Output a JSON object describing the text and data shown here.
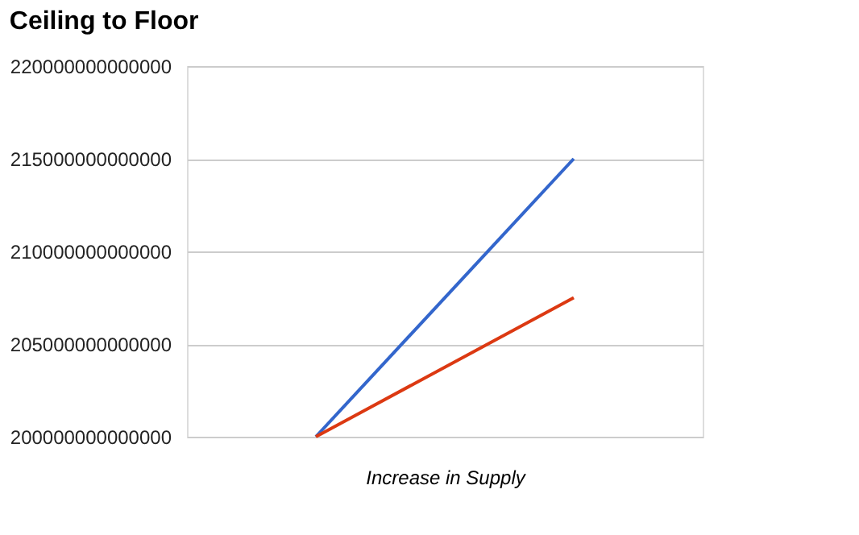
{
  "chart_data": {
    "type": "line",
    "title": "Ceiling to Floor",
    "xlabel": "Increase in Supply",
    "categories": [
      null,
      null
    ],
    "series": [
      {
        "color": "#3366cc",
        "values": [
          200000000000000,
          215000000000000
        ]
      },
      {
        "color": "#dc3912",
        "values": [
          200000000000000,
          207500000000000
        ]
      }
    ],
    "ylim": [
      200000000000000,
      220000000000000
    ],
    "yticks": [
      200000000000000,
      205000000000000,
      210000000000000,
      215000000000000,
      220000000000000
    ],
    "grid": "y",
    "tick_labels": "y",
    "marker": "none",
    "line_style": "solid"
  }
}
